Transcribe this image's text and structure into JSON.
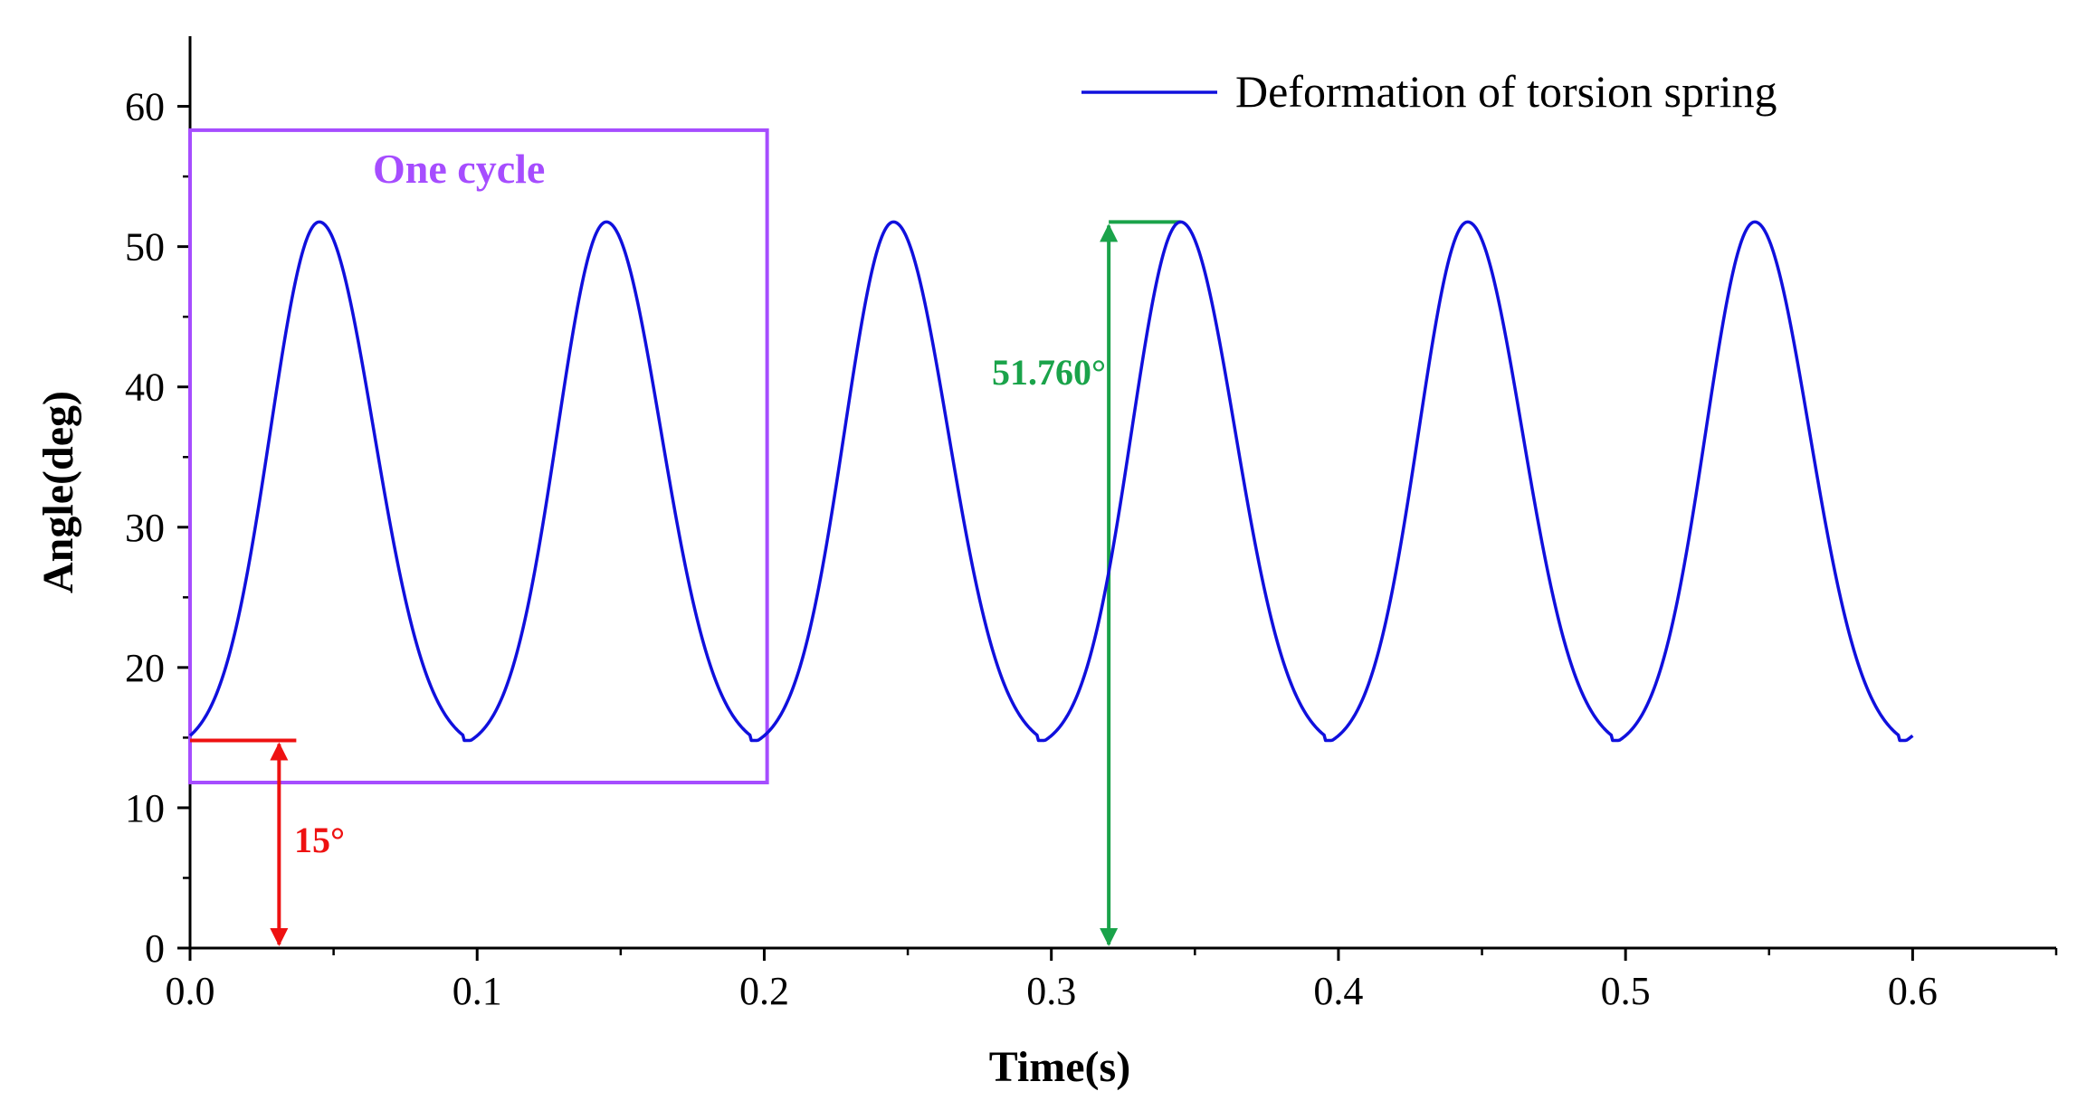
{
  "chart_data": {
    "type": "line",
    "title": "",
    "xlabel": "Time(s)",
    "ylabel": "Angle(deg)",
    "xlim": [
      0,
      0.65
    ],
    "ylim": [
      0,
      65
    ],
    "x_ticks": [
      0.0,
      0.1,
      0.2,
      0.3,
      0.4,
      0.5,
      0.6
    ],
    "x_tick_labels": [
      "0.0",
      "0.1",
      "0.2",
      "0.3",
      "0.4",
      "0.5",
      "0.6"
    ],
    "y_ticks": [
      0,
      10,
      20,
      30,
      40,
      50,
      60
    ],
    "y_tick_labels": [
      "0",
      "10",
      "20",
      "30",
      "40",
      "50",
      "60"
    ],
    "legend_position": "top-right",
    "grid": false,
    "series": [
      {
        "name": "Deformation of torsion spring",
        "color": "#1010dd",
        "function": "periodic",
        "period": 0.1,
        "min": 14.8,
        "max": 51.76,
        "peak_times": [
          0.045,
          0.145,
          0.245,
          0.345,
          0.445,
          0.545
        ],
        "x_start": 0.0,
        "x_end": 0.6
      }
    ],
    "annotations": [
      {
        "name": "one-cycle-box",
        "label": "One cycle",
        "color": "#a64dff",
        "x_range": [
          0.0,
          0.201
        ],
        "y_range": [
          11.8,
          58.3
        ]
      },
      {
        "name": "min-angle-marker",
        "label": "15°",
        "color": "#ee1111",
        "x": 0.031,
        "y_from": 0,
        "y_to": 14.8,
        "line_x_range": [
          0.0,
          0.037
        ]
      },
      {
        "name": "max-angle-marker",
        "label": "51.760°",
        "color": "#1aa34a",
        "x": 0.32,
        "y_from": 0,
        "y_to": 51.76,
        "line_x_range": [
          0.32,
          0.345
        ]
      }
    ]
  }
}
